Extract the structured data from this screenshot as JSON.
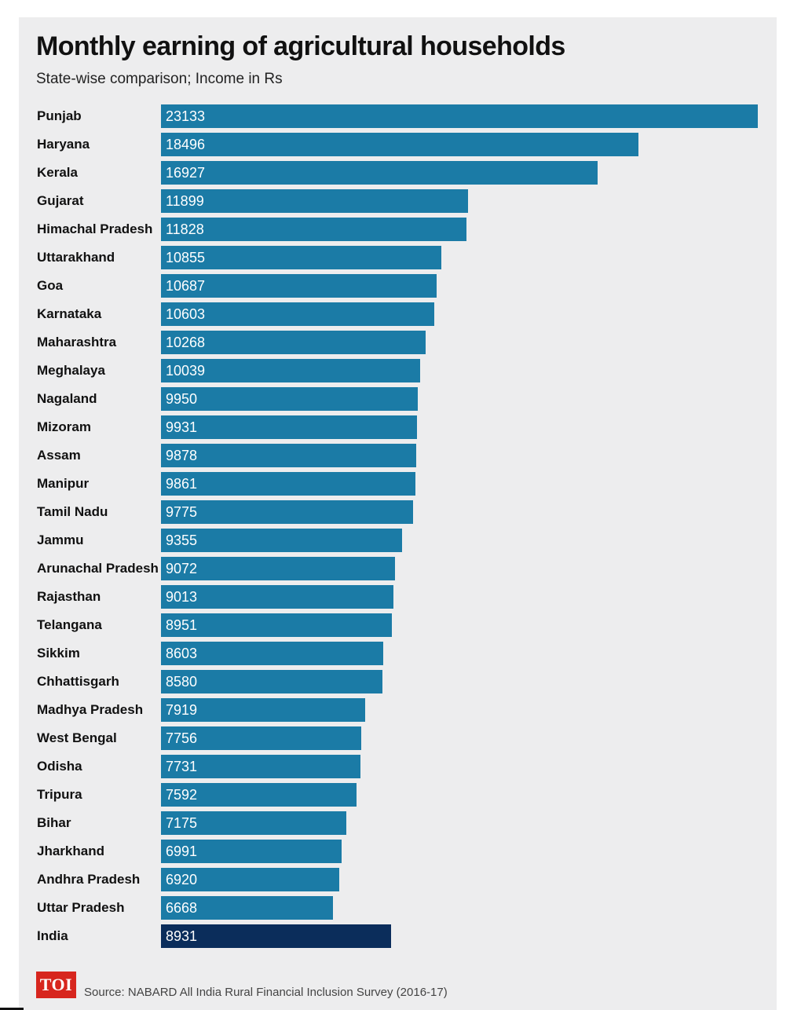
{
  "header": {
    "title": "Monthly earning of agricultural households",
    "subtitle": "State-wise comparison; Income in Rs"
  },
  "footer": {
    "logo_text": "TOI",
    "source": "Source: NABARD All India Rural Financial Inclusion Survey (2016-17)"
  },
  "colors": {
    "bar": "#1b7ba6",
    "highlight_bar": "#0b2d5b",
    "background": "#ededee",
    "logo": "#d7261e"
  },
  "chart_data": {
    "type": "bar",
    "orientation": "horizontal",
    "title": "Monthly earning of agricultural households",
    "subtitle": "State-wise comparison; Income in Rs",
    "xlabel": "",
    "ylabel": "",
    "xlim": [
      0,
      23133
    ],
    "grid": false,
    "legend": "none",
    "highlight": "India",
    "categories": [
      "Punjab",
      "Haryana",
      "Kerala",
      "Gujarat",
      "Himachal Pradesh",
      "Uttarakhand",
      "Goa",
      "Karnataka",
      "Maharashtra",
      "Meghalaya",
      "Nagaland",
      "Mizoram",
      "Assam",
      "Manipur",
      "Tamil Nadu",
      "Jammu",
      "Arunachal Pradesh",
      "Rajasthan",
      "Telangana",
      "Sikkim",
      "Chhattisgarh",
      "Madhya Pradesh",
      "West Bengal",
      "Odisha",
      "Tripura",
      "Bihar",
      "Jharkhand",
      "Andhra Pradesh",
      "Uttar Pradesh",
      "India"
    ],
    "values": [
      23133,
      18496,
      16927,
      11899,
      11828,
      10855,
      10687,
      10603,
      10268,
      10039,
      9950,
      9931,
      9878,
      9861,
      9775,
      9355,
      9072,
      9013,
      8951,
      8603,
      8580,
      7919,
      7756,
      7731,
      7592,
      7175,
      6991,
      6920,
      6668,
      8931
    ]
  }
}
